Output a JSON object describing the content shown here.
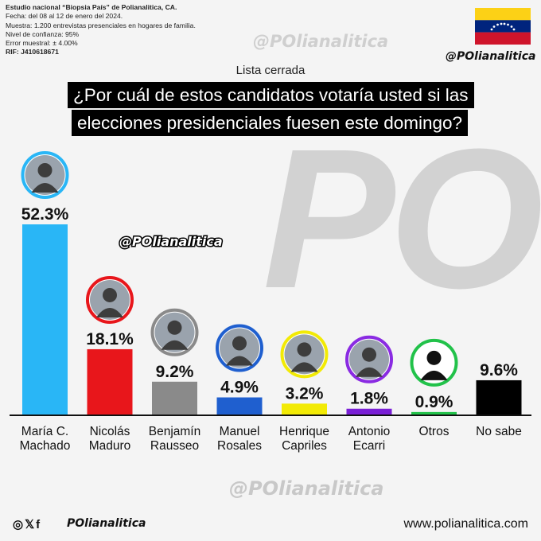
{
  "meta": {
    "study": "Estudio nacional “Biopsia País” de Polianalitica, CA.",
    "date": "Fecha: del 08 al 12 de enero del 2024.",
    "sample": "Muestra: 1.200 entrevistas presenciales en hogares de familia.",
    "confidence": "Nivel de confianza: 95%",
    "error": "Error muestral: ± 4.00%",
    "rif": "RIF: J410618671"
  },
  "handle": "@POlianalitica",
  "watermark": "PO",
  "subtitle": "Lista cerrada",
  "question_line1": "¿Por cuál de estos candidatos votaría usted si las",
  "question_line2": "elecciones presidenciales fuesen este domingo?",
  "footer": {
    "social_icons": "◎𝕏f",
    "handle": "POlianalitica",
    "website": "www.polianalitica.com"
  },
  "colors": {
    "flag_yellow": "#FCD116",
    "flag_blue": "#00247D",
    "flag_red": "#CF142B"
  },
  "chart_data": {
    "type": "bar",
    "categories": [
      "María C.\nMachado",
      "Nicolás\nMaduro",
      "Benjamín\nRausseo",
      "Manuel\nRosales",
      "Henrique\nCapriles",
      "Antonio\nEcarri",
      "Otros",
      "No sabe"
    ],
    "values": [
      52.3,
      18.1,
      9.2,
      4.9,
      3.2,
      1.8,
      0.9,
      9.6
    ],
    "value_labels": [
      "52.3%",
      "18.1%",
      "9.2%",
      "4.9%",
      "3.2%",
      "1.8%",
      "0.9%",
      "9.6%"
    ],
    "colors": [
      "#29b6f6",
      "#e8161b",
      "#8a8a8a",
      "#1f5fcf",
      "#f2ea05",
      "#7a1fd6",
      "#22c24a",
      "#000000"
    ],
    "photo_ring_colors": [
      "#29b6f6",
      "#e8161b",
      "#8a8a8a",
      "#1f5fcf",
      "#f2ea05",
      "#8a2be2",
      "#22c24a",
      null
    ],
    "ylim": [
      0,
      52.3
    ]
  }
}
